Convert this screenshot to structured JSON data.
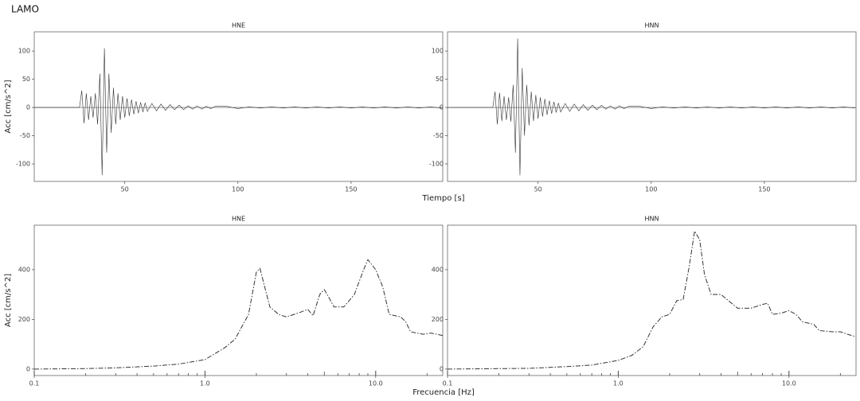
{
  "title": "LAMO",
  "chart_data": [
    {
      "type": "line",
      "title": "HNE",
      "ylabel": "Acc [cm/s^2]",
      "xlabel": "Tiempo [s]",
      "xlim": [
        10,
        190.5
      ],
      "ylim": [
        -131,
        134
      ],
      "xticks": [
        50,
        100,
        150
      ],
      "yticks": [
        -100,
        -50,
        0,
        50,
        100
      ],
      "hline": 0,
      "x": [
        10,
        30,
        31,
        32,
        33,
        34,
        35,
        36,
        37,
        38,
        39,
        40,
        41,
        42,
        43,
        44,
        45,
        46,
        47,
        48,
        49,
        50,
        51,
        52,
        53,
        54,
        55,
        56,
        57,
        58,
        59,
        60,
        62,
        64,
        66,
        68,
        70,
        72,
        74,
        76,
        78,
        80,
        82,
        84,
        86,
        88,
        90,
        95,
        100,
        105,
        110,
        115,
        120,
        125,
        130,
        135,
        140,
        145,
        150,
        155,
        160,
        165,
        170,
        175,
        180,
        185,
        190
      ],
      "series": [
        {
          "color": "#333333",
          "values": [
            0,
            0,
            30,
            -28,
            25,
            -22,
            20,
            -18,
            25,
            -30,
            60,
            -120,
            105,
            -80,
            60,
            -45,
            35,
            -30,
            25,
            -22,
            20,
            -18,
            16,
            -15,
            14,
            -12,
            11,
            -10,
            9,
            -8,
            8,
            -7,
            7,
            -6,
            6,
            -5,
            5,
            -4,
            4,
            -4,
            3,
            -3,
            3,
            -3,
            2,
            -2,
            2,
            2,
            -2,
            1,
            -1,
            1,
            -1,
            1,
            -1,
            1,
            -1,
            1,
            -1,
            1,
            -1,
            1,
            -1,
            1,
            -1,
            1,
            -1
          ]
        }
      ]
    },
    {
      "type": "line",
      "title": "HNN",
      "xlim": [
        10,
        190.5
      ],
      "ylim": [
        -131,
        134
      ],
      "xticks": [
        50,
        100,
        150
      ],
      "yticks": [
        -100,
        -50,
        0,
        50,
        100
      ],
      "hline": 0,
      "x": [
        10,
        30,
        31,
        32,
        33,
        34,
        35,
        36,
        37,
        38,
        39,
        40,
        41,
        42,
        43,
        44,
        45,
        46,
        47,
        48,
        49,
        50,
        51,
        52,
        53,
        54,
        55,
        56,
        57,
        58,
        59,
        60,
        62,
        64,
        66,
        68,
        70,
        72,
        74,
        76,
        78,
        80,
        82,
        84,
        86,
        88,
        90,
        95,
        100,
        105,
        110,
        115,
        120,
        125,
        130,
        135,
        140,
        145,
        150,
        155,
        160,
        165,
        170,
        175,
        180,
        185,
        190
      ],
      "series": [
        {
          "color": "#333333",
          "values": [
            0,
            0,
            28,
            -30,
            26,
            -24,
            20,
            -22,
            18,
            -25,
            40,
            -80,
            122,
            -120,
            70,
            -50,
            40,
            -32,
            28,
            -24,
            22,
            -20,
            18,
            -16,
            15,
            -13,
            12,
            -11,
            10,
            -9,
            8,
            -8,
            7,
            -7,
            6,
            -6,
            5,
            -5,
            4,
            -4,
            4,
            -3,
            3,
            -3,
            3,
            -2,
            2,
            2,
            -2,
            1,
            -1,
            1,
            -1,
            1,
            -1,
            1,
            -1,
            1,
            -1,
            1,
            -1,
            1,
            -1,
            1,
            -1,
            1,
            -1
          ]
        }
      ]
    },
    {
      "type": "line",
      "title": "HNE",
      "ylabel": "Acc [cm/s^2]",
      "xlabel": "Frecuencia [Hz]",
      "xscale": "log",
      "xlim": [
        0.1,
        24.7
      ],
      "ylim": [
        -26,
        579
      ],
      "xticks": [
        {
          "value": 0.1,
          "label": "0.1"
        },
        {
          "value": 1,
          "label": "1.0"
        },
        {
          "value": 10,
          "label": "10.0"
        }
      ],
      "xminorticks": [
        0.2,
        0.3,
        0.4,
        0.5,
        0.6,
        0.7,
        0.8,
        0.9,
        2,
        3,
        4,
        5,
        6,
        7,
        8,
        9,
        20
      ],
      "yticks": [
        0,
        200,
        400
      ],
      "x": [
        0.1,
        0.2,
        0.3,
        0.5,
        0.7,
        1.0,
        1.3,
        1.5,
        1.8,
        2.0,
        2.1,
        2.2,
        2.4,
        2.7,
        3.0,
        3.5,
        4.0,
        4.3,
        4.7,
        5.0,
        5.3,
        5.7,
        6.5,
        7.5,
        8.5,
        9.0,
        10,
        11,
        12,
        14,
        15,
        16,
        19,
        21,
        24.7
      ],
      "series": [
        {
          "color": "#333333",
          "values": [
            0,
            2,
            5,
            12,
            20,
            38,
            85,
            120,
            220,
            390,
            405,
            350,
            250,
            220,
            210,
            225,
            240,
            215,
            300,
            320,
            290,
            250,
            250,
            300,
            400,
            440,
            400,
            330,
            220,
            210,
            190,
            150,
            140,
            145,
            135
          ]
        }
      ]
    },
    {
      "type": "line",
      "title": "HNN",
      "xscale": "log",
      "xlim": [
        0.1,
        24.7
      ],
      "ylim": [
        -26,
        579
      ],
      "xticks": [
        {
          "value": 0.1,
          "label": "0.1"
        },
        {
          "value": 1,
          "label": "1.0"
        },
        {
          "value": 10,
          "label": "10.0"
        }
      ],
      "xminorticks": [
        0.2,
        0.3,
        0.4,
        0.5,
        0.6,
        0.7,
        0.8,
        0.9,
        2,
        3,
        4,
        5,
        6,
        7,
        8,
        9,
        20
      ],
      "yticks": [
        0,
        200,
        400
      ],
      "x": [
        0.1,
        0.3,
        0.5,
        0.7,
        1.0,
        1.2,
        1.4,
        1.6,
        1.8,
        2.0,
        2.2,
        2.4,
        2.6,
        2.8,
        3.0,
        3.2,
        3.5,
        4.0,
        5.0,
        6.0,
        7.0,
        7.5,
        8.0,
        9.0,
        10,
        11,
        12,
        14,
        15,
        18,
        20,
        22,
        24.7
      ],
      "series": [
        {
          "color": "#333333",
          "values": [
            0,
            3,
            10,
            16,
            35,
            55,
            90,
            170,
            210,
            220,
            275,
            280,
            410,
            555,
            520,
            380,
            300,
            300,
            245,
            245,
            260,
            265,
            220,
            225,
            235,
            220,
            190,
            180,
            155,
            150,
            150,
            140,
            130
          ]
        }
      ]
    }
  ]
}
